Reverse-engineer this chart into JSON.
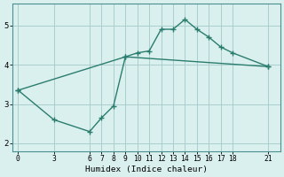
{
  "xlabel": "Humidex (Indice chaleur)",
  "line_color": "#2a7d6e",
  "bg_color": "#daf0ee",
  "grid_color": "#aacece",
  "x_upper": [
    0,
    9,
    10,
    11,
    12,
    13,
    14,
    15,
    16,
    17,
    18,
    21
  ],
  "y_upper": [
    3.35,
    4.2,
    4.3,
    4.35,
    4.9,
    4.9,
    5.15,
    4.9,
    4.7,
    4.45,
    4.3,
    3.95
  ],
  "x_lower": [
    0,
    3,
    6,
    7,
    8,
    9,
    21
  ],
  "y_lower": [
    3.35,
    2.6,
    2.3,
    2.65,
    2.95,
    4.2,
    3.95
  ],
  "xlim": [
    -0.5,
    22
  ],
  "ylim": [
    1.8,
    5.55
  ],
  "xticks": [
    0,
    3,
    6,
    7,
    8,
    9,
    10,
    11,
    12,
    13,
    14,
    15,
    16,
    17,
    18,
    21
  ],
  "yticks": [
    2,
    3,
    4,
    5
  ],
  "marker": "+",
  "markersize": 4,
  "linewidth": 1.0
}
